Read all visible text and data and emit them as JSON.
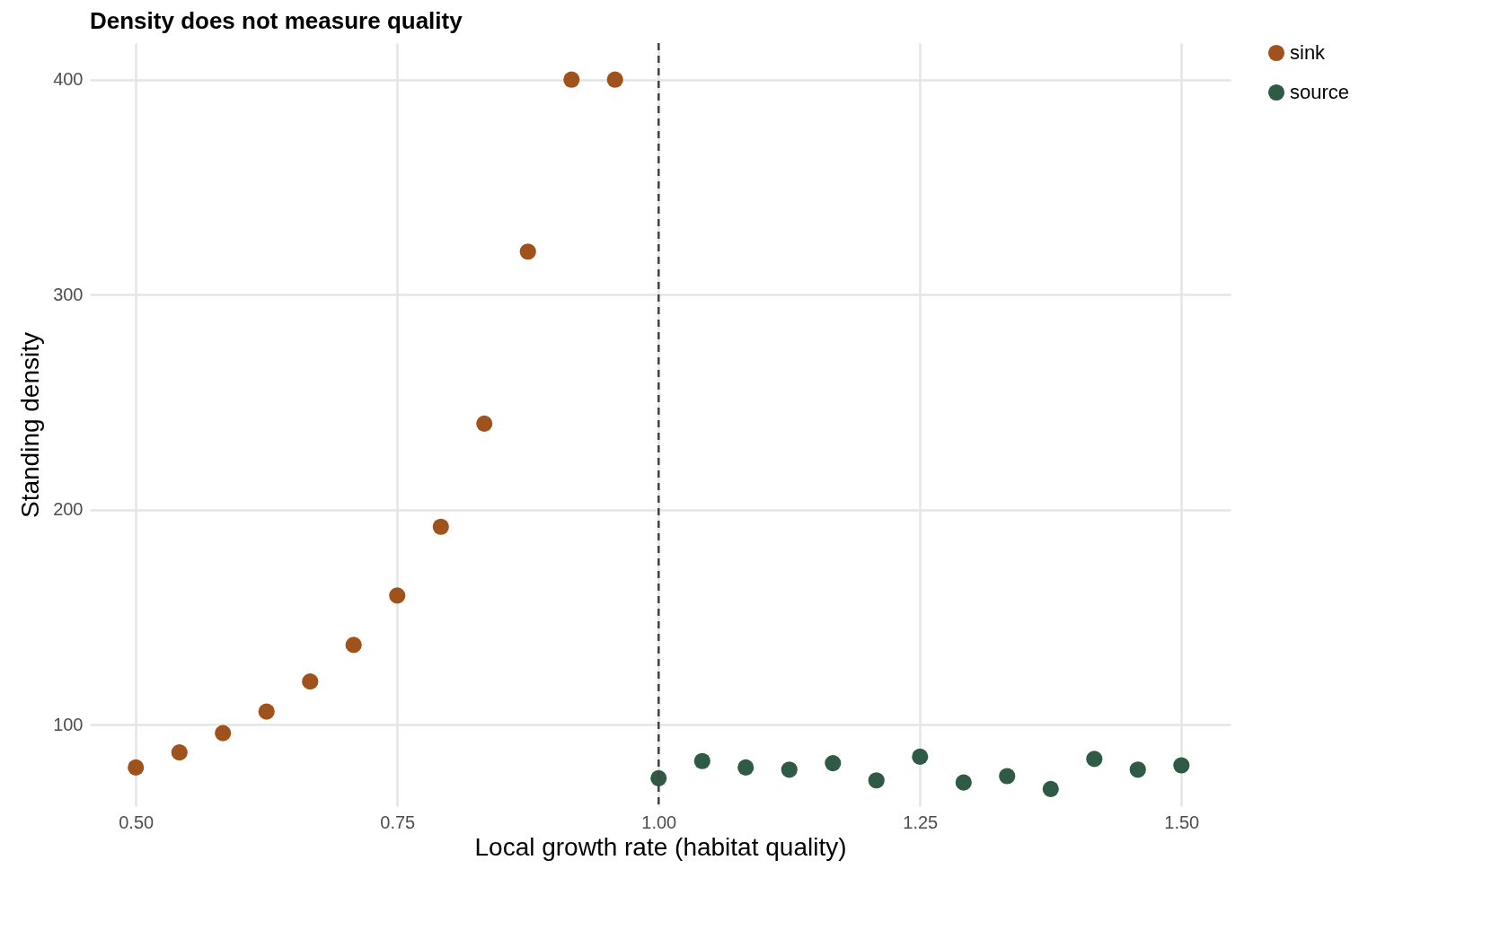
{
  "chart_data": {
    "type": "scatter",
    "title": "Density does not measure quality",
    "xlabel": "Local growth rate (habitat quality)",
    "ylabel": "Standing density",
    "xlim": [
      0.456,
      1.547
    ],
    "xticks": [
      {
        "value": 0.5,
        "label": "0.50"
      },
      {
        "value": 0.75,
        "label": "0.75"
      },
      {
        "value": 1,
        "label": "1.00"
      },
      {
        "value": 1.25,
        "label": "1.25"
      },
      {
        "value": 1.5,
        "label": "1.50"
      }
    ],
    "ylim": [
      62,
      417
    ],
    "yticks": [
      100,
      200,
      300,
      400
    ],
    "grid": true,
    "legend": "right",
    "marker": "circle",
    "ref_lines": [
      {
        "axis": "x",
        "value": 1,
        "color": "#444444",
        "line_style": "dashed"
      }
    ],
    "series": [
      {
        "name": "sink",
        "color": "#a0521c",
        "x": [
          0.5,
          0.5417,
          0.5833,
          0.625,
          0.6667,
          0.7083,
          0.75,
          0.7917,
          0.8333,
          0.875,
          0.9167,
          0.9583
        ],
        "values": [
          80,
          87,
          96,
          106,
          120,
          137,
          160,
          192,
          240,
          320,
          400,
          400
        ]
      },
      {
        "name": "source",
        "color": "#2f5a45",
        "x": [
          1,
          1.0417,
          1.0833,
          1.125,
          1.1667,
          1.2083,
          1.25,
          1.2917,
          1.3333,
          1.375,
          1.4167,
          1.4583,
          1.5
        ],
        "values": [
          75,
          83,
          80,
          79,
          82,
          74,
          85,
          73,
          76,
          70,
          84,
          79,
          81
        ]
      }
    ]
  }
}
